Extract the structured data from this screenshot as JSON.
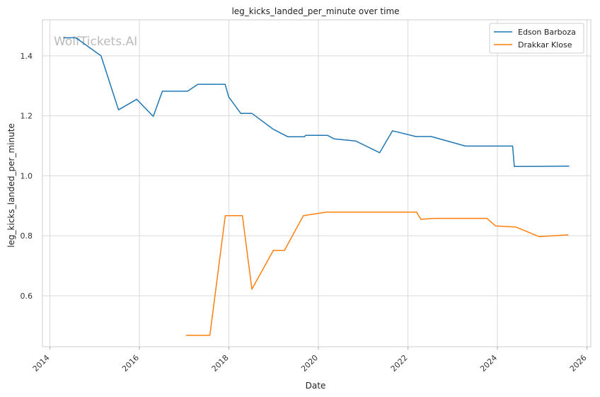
{
  "chart_data": {
    "type": "line",
    "title": "leg_kicks_landed_per_minute over time",
    "xlabel": "Date",
    "ylabel": "leg_kicks_landed_per_minute",
    "watermark": "WolfTickets.AI",
    "x_axis": "date",
    "xlim": [
      "2013-11-01",
      "2026-02-01"
    ],
    "ylim": [
      0.43,
      1.52
    ],
    "xticks": [
      "2014",
      "2016",
      "2018",
      "2020",
      "2022",
      "2024",
      "2026"
    ],
    "yticks": [
      0.6,
      0.8,
      1.0,
      1.2,
      1.4
    ],
    "ytick_labels": [
      "0.6",
      "0.8",
      "1.0",
      "1.2",
      "1.4"
    ],
    "grid": true,
    "legend_position": "top-right",
    "series": [
      {
        "name": "Edson Barboza",
        "color": "#1f77b4",
        "points": [
          [
            "2014-04-19",
            1.46
          ],
          [
            "2014-08-01",
            1.46
          ],
          [
            "2015-02-22",
            1.4
          ],
          [
            "2015-07-15",
            1.22
          ],
          [
            "2015-12-10",
            1.255
          ],
          [
            "2016-04-23",
            1.198
          ],
          [
            "2016-07-07",
            1.282
          ],
          [
            "2017-01-28",
            1.282
          ],
          [
            "2017-04-22",
            1.305
          ],
          [
            "2017-12-01",
            1.305
          ],
          [
            "2017-12-30",
            1.263
          ],
          [
            "2018-04-07",
            1.208
          ],
          [
            "2018-07-07",
            1.208
          ],
          [
            "2018-12-29",
            1.155
          ],
          [
            "2019-04-27",
            1.13
          ],
          [
            "2019-09-07",
            1.13
          ],
          [
            "2019-09-21",
            1.135
          ],
          [
            "2020-03-14",
            1.135
          ],
          [
            "2020-05-09",
            1.123
          ],
          [
            "2020-10-31",
            1.116
          ],
          [
            "2021-05-15",
            1.077
          ],
          [
            "2021-08-28",
            1.15
          ],
          [
            "2022-03-05",
            1.131
          ],
          [
            "2022-07-09",
            1.131
          ],
          [
            "2023-04-15",
            1.099
          ],
          [
            "2023-12-09",
            1.099
          ],
          [
            "2024-05-04",
            1.099
          ],
          [
            "2024-05-18",
            1.031
          ],
          [
            "2025-08-09",
            1.032
          ]
        ]
      },
      {
        "name": "Drakkar Klose",
        "color": "#ff7f0e",
        "points": [
          [
            "2017-01-15",
            0.468
          ],
          [
            "2017-07-29",
            0.468
          ],
          [
            "2017-12-02",
            0.867
          ],
          [
            "2018-04-21",
            0.867
          ],
          [
            "2018-07-07",
            0.622
          ],
          [
            "2018-12-29",
            0.751
          ],
          [
            "2019-03-30",
            0.751
          ],
          [
            "2019-08-31",
            0.867
          ],
          [
            "2020-03-07",
            0.879
          ],
          [
            "2021-06-05",
            0.879
          ],
          [
            "2022-03-12",
            0.879
          ],
          [
            "2022-04-16",
            0.855
          ],
          [
            "2022-07-30",
            0.858
          ],
          [
            "2023-10-07",
            0.858
          ],
          [
            "2023-12-16",
            0.833
          ],
          [
            "2024-06-01",
            0.829
          ],
          [
            "2024-12-07",
            0.797
          ],
          [
            "2025-08-02",
            0.803
          ]
        ]
      }
    ]
  }
}
